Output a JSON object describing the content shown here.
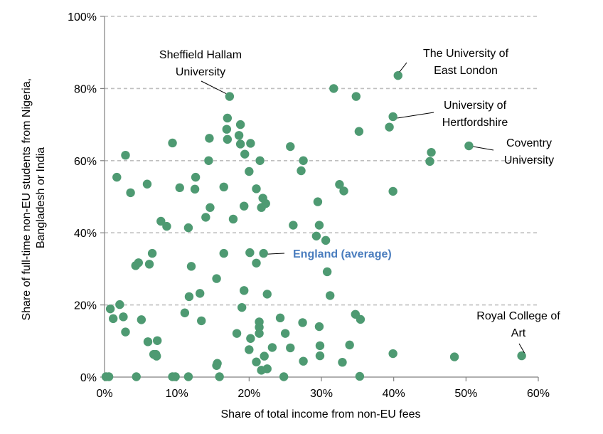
{
  "chart_data": {
    "type": "scatter",
    "title": "",
    "xlabel": "Share of total income from non-EU fees",
    "ylabel_lines": [
      "Share of full-time non-EU students from Nigeria,",
      "Bangladesh or India"
    ],
    "xlim": [
      0,
      60
    ],
    "ylim": [
      0,
      100
    ],
    "x_ticks": [
      0,
      10,
      20,
      30,
      40,
      50,
      60
    ],
    "y_ticks": [
      0,
      20,
      40,
      60,
      80,
      100
    ],
    "x_tick_labels": [
      "0%",
      "10%",
      "20%",
      "30%",
      "40%",
      "50%",
      "60%"
    ],
    "y_tick_labels": [
      "0%",
      "20%",
      "40%",
      "60%",
      "80%",
      "100%"
    ],
    "grid": "horizontal dashed",
    "point_color": "#4e9a72",
    "points": [
      [
        17.3,
        77.8
      ],
      [
        17.0,
        71.8
      ],
      [
        16.9,
        68.7
      ],
      [
        17.0,
        65.9
      ],
      [
        18.8,
        70.0
      ],
      [
        18.6,
        67.0
      ],
      [
        18.8,
        64.6
      ],
      [
        20.2,
        64.8
      ],
      [
        14.5,
        66.2
      ],
      [
        14.4,
        60.0
      ],
      [
        19.4,
        61.8
      ],
      [
        21.5,
        60.0
      ],
      [
        20.0,
        57.0
      ],
      [
        16.5,
        52.7
      ],
      [
        21.0,
        52.2
      ],
      [
        21.9,
        49.6
      ],
      [
        22.3,
        48.1
      ],
      [
        21.7,
        47.0
      ],
      [
        19.3,
        47.4
      ],
      [
        17.8,
        43.8
      ],
      [
        14.6,
        47.0
      ],
      [
        14.0,
        44.3
      ],
      [
        12.6,
        55.4
      ],
      [
        12.5,
        52.1
      ],
      [
        10.4,
        52.5
      ],
      [
        9.4,
        64.9
      ],
      [
        11.6,
        41.4
      ],
      [
        8.6,
        41.8
      ],
      [
        7.8,
        43.2
      ],
      [
        5.9,
        53.5
      ],
      [
        3.6,
        51.1
      ],
      [
        1.7,
        55.4
      ],
      [
        2.9,
        61.5
      ],
      [
        6.6,
        34.3
      ],
      [
        6.2,
        31.3
      ],
      [
        4.7,
        31.7
      ],
      [
        4.3,
        30.9
      ],
      [
        12.0,
        30.7
      ],
      [
        16.5,
        34.3
      ],
      [
        20.1,
        34.5
      ],
      [
        22.0,
        34.3
      ],
      [
        21.0,
        31.6
      ],
      [
        15.5,
        27.3
      ],
      [
        19.3,
        24.0
      ],
      [
        22.5,
        23.0
      ],
      [
        13.2,
        23.2
      ],
      [
        11.7,
        22.3
      ],
      [
        11.1,
        17.8
      ],
      [
        13.4,
        15.6
      ],
      [
        19.0,
        19.3
      ],
      [
        21.4,
        15.3
      ],
      [
        21.4,
        13.8
      ],
      [
        21.4,
        12.1
      ],
      [
        18.3,
        12.1
      ],
      [
        20.2,
        10.7
      ],
      [
        20.0,
        7.6
      ],
      [
        21.0,
        4.2
      ],
      [
        22.1,
        5.8
      ],
      [
        21.7,
        1.9
      ],
      [
        22.5,
        2.3
      ],
      [
        23.2,
        8.2
      ],
      [
        24.3,
        16.4
      ],
      [
        25.0,
        12.1
      ],
      [
        25.7,
        8.1
      ],
      [
        27.4,
        15.1
      ],
      [
        27.5,
        4.4
      ],
      [
        24.8,
        0.1
      ],
      [
        25.7,
        63.9
      ],
      [
        27.2,
        57.2
      ],
      [
        27.5,
        60.0
      ],
      [
        29.5,
        48.6
      ],
      [
        29.7,
        42.1
      ],
      [
        26.1,
        42.1
      ],
      [
        29.3,
        39.1
      ],
      [
        30.6,
        37.9
      ],
      [
        30.8,
        29.2
      ],
      [
        31.2,
        22.6
      ],
      [
        29.7,
        14.0
      ],
      [
        29.8,
        8.7
      ],
      [
        29.8,
        5.9
      ],
      [
        32.9,
        4.1
      ],
      [
        33.9,
        8.9
      ],
      [
        34.7,
        17.4
      ],
      [
        35.4,
        16.0
      ],
      [
        35.3,
        0.2
      ],
      [
        32.5,
        53.4
      ],
      [
        33.1,
        51.6
      ],
      [
        31.7,
        80.0
      ],
      [
        34.8,
        77.8
      ],
      [
        35.2,
        68.1
      ],
      [
        39.4,
        69.3
      ],
      [
        39.9,
        72.2
      ],
      [
        40.6,
        83.6
      ],
      [
        39.9,
        51.5
      ],
      [
        45.2,
        62.3
      ],
      [
        45.0,
        59.8
      ],
      [
        50.4,
        64.1
      ],
      [
        39.9,
        6.5
      ],
      [
        48.4,
        5.6
      ],
      [
        57.7,
        5.9
      ],
      [
        15.6,
        3.8
      ],
      [
        15.5,
        3.2
      ],
      [
        15.9,
        0.1
      ],
      [
        11.6,
        0.1
      ],
      [
        9.4,
        0.1
      ],
      [
        9.8,
        0.1
      ],
      [
        4.4,
        0.1
      ],
      [
        0.2,
        0.1
      ],
      [
        0.6,
        0.1
      ],
      [
        0.8,
        18.9
      ],
      [
        1.2,
        16.2
      ],
      [
        2.1,
        20.1
      ],
      [
        2.6,
        16.7
      ],
      [
        2.9,
        12.5
      ],
      [
        5.1,
        15.9
      ],
      [
        6.0,
        9.8
      ],
      [
        7.3,
        10.1
      ],
      [
        6.8,
        6.3
      ],
      [
        7.1,
        6.3
      ],
      [
        7.2,
        5.8
      ]
    ],
    "annotations": [
      {
        "lines": [
          "Sheffield Hallam",
          "University"
        ],
        "x": 17.3,
        "y": 77.8
      },
      {
        "lines": [
          "The University of",
          "East London"
        ],
        "x": 40.6,
        "y": 83.6
      },
      {
        "lines": [
          "University of",
          "Hertfordshire"
        ],
        "x": 39.9,
        "y": 72.2
      },
      {
        "lines": [
          "Coventry",
          "University"
        ],
        "x": 50.4,
        "y": 64.1
      },
      {
        "lines": [
          "England (average)"
        ],
        "x": 22.0,
        "y": 34.3,
        "highlight": true
      },
      {
        "lines": [
          "Royal College of",
          "Art"
        ],
        "x": 57.7,
        "y": 5.9
      }
    ]
  }
}
